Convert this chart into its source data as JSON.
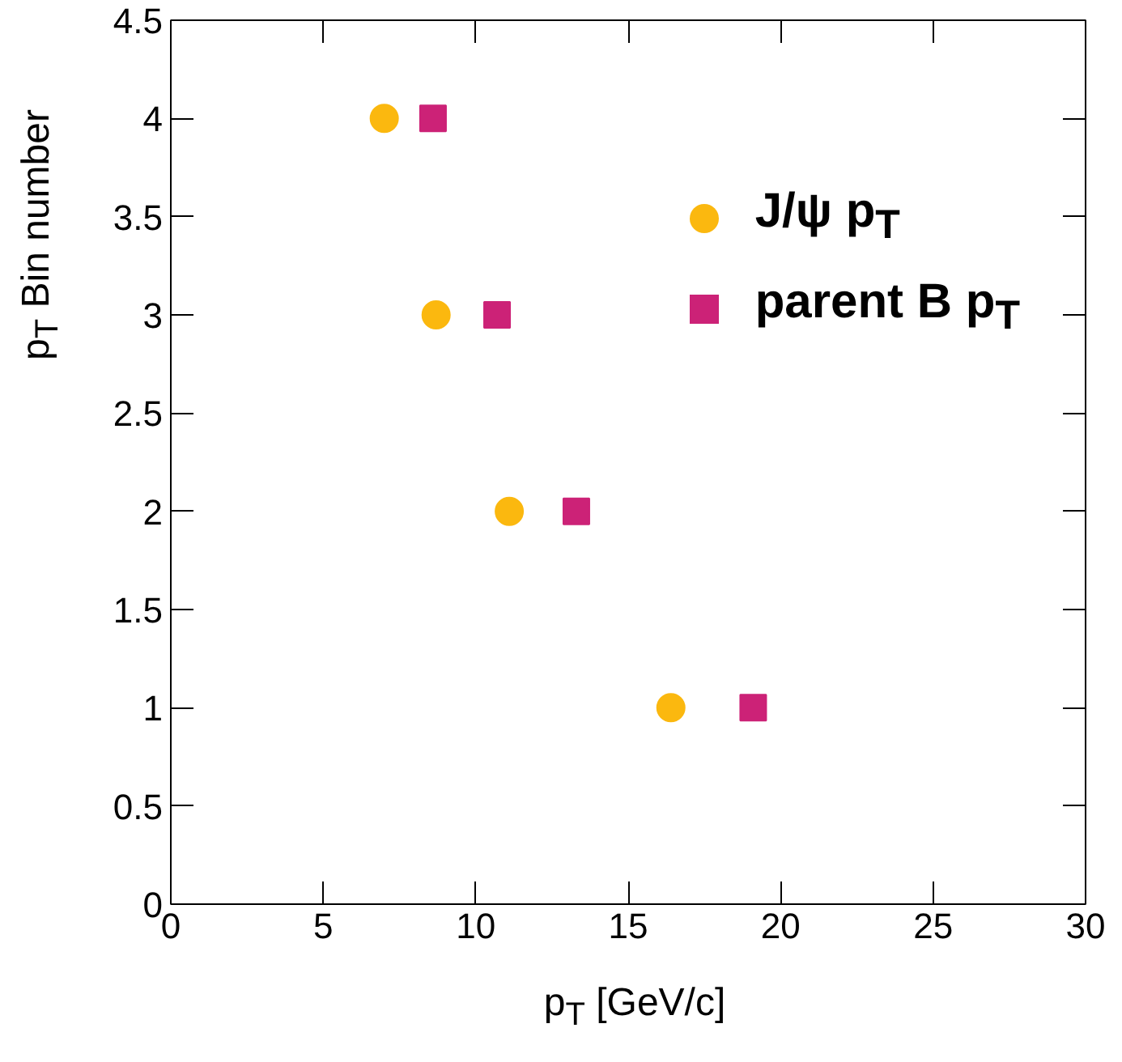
{
  "chart_data": {
    "type": "scatter",
    "xlabel": "p$_{T}$ [GeV/c]",
    "ylabel": "p$_{T}$ Bin number",
    "series": [
      {
        "name": "J/ψ p$_{T}$",
        "color": "#fbb80f",
        "marker": "circle",
        "x": [
          7.0,
          8.7,
          11.1,
          16.4
        ],
        "values": [
          4,
          3,
          2,
          1
        ]
      },
      {
        "name": "parent B p$_{T}$",
        "color": "#cc2277",
        "marker": "square",
        "x": [
          8.6,
          10.7,
          13.3,
          19.1
        ],
        "values": [
          4,
          3,
          2,
          1
        ]
      }
    ],
    "xlim": [
      0,
      30
    ],
    "ylim": [
      0,
      4.5
    ],
    "xticks": [
      0,
      5,
      10,
      15,
      20,
      25,
      30
    ],
    "yticks": [
      0,
      0.5,
      1,
      1.5,
      2,
      2.5,
      3,
      3.5,
      4,
      4.5
    ],
    "grid": false,
    "legend": "top right"
  }
}
